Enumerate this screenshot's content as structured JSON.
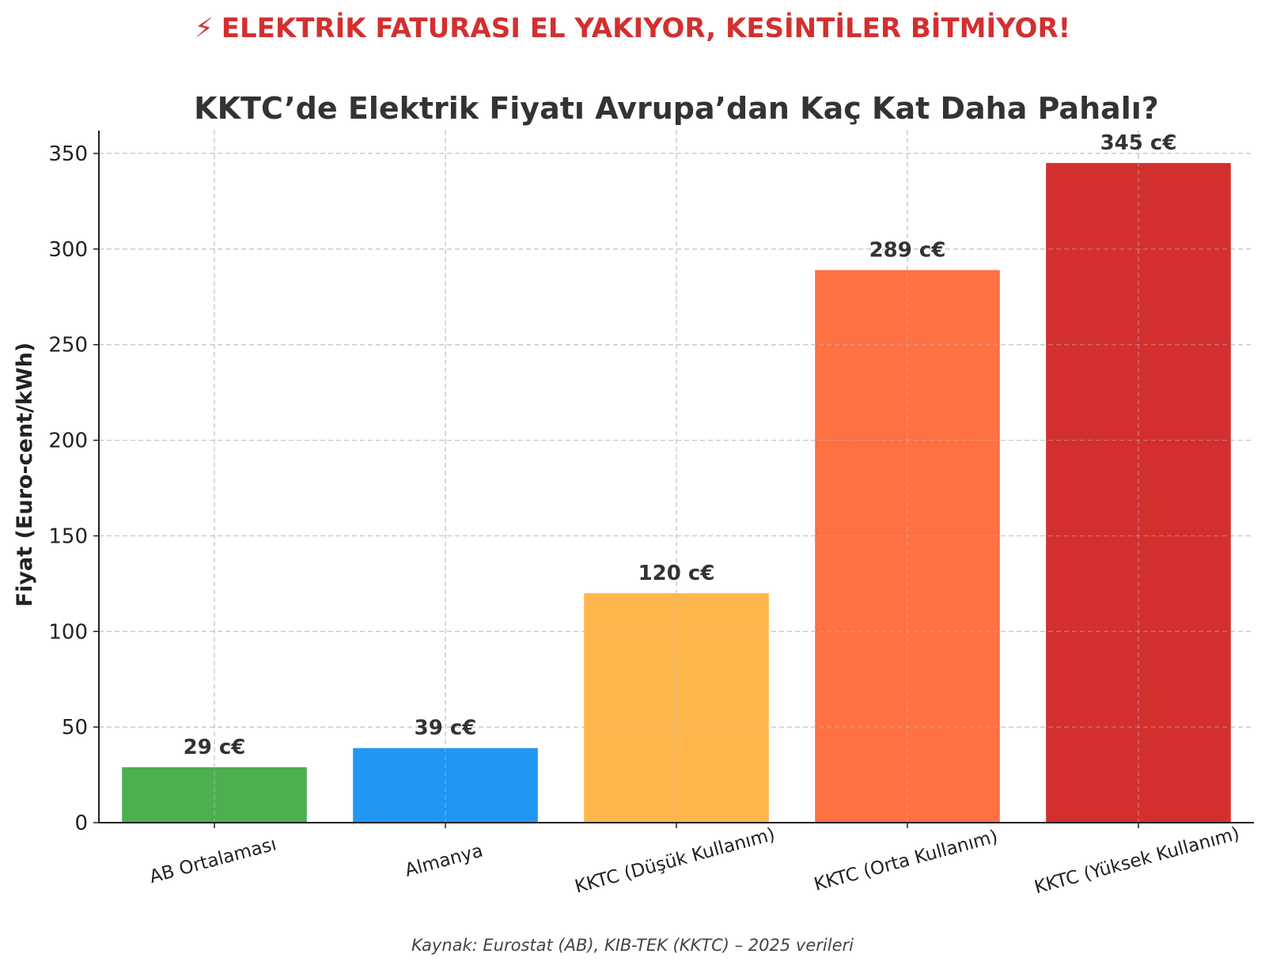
{
  "headline": {
    "icon": "lightning-bolt-icon",
    "icon_glyph": "⚡",
    "text": "ELEKTRİK FATURASI EL YAKIYOR, KESİNTİLER BİTMİYOR!",
    "color": "#d32f2f"
  },
  "chart_data": {
    "type": "bar",
    "title": "KKTC’de Elektrik Fiyatı Avrupa’dan Kaç Kat Daha Pahalı?",
    "xlabel": "",
    "ylabel": "Fiyat (Euro-cent/kWh)",
    "categories": [
      "AB Ortalaması",
      "Almanya",
      "KKTC (Düşük Kullanım)",
      "KKTC (Orta Kullanım)",
      "KKTC (Yüksek Kullanım)"
    ],
    "values": [
      29,
      39,
      120,
      289,
      345
    ],
    "value_labels": [
      "29 c€",
      "39 c€",
      "120 c€",
      "289 c€",
      "345 c€"
    ],
    "colors": [
      "#4caf50",
      "#2196f3",
      "#ffb74d",
      "#ff7043",
      "#d32f2f"
    ],
    "yticks": [
      0,
      50,
      100,
      150,
      200,
      250,
      300,
      350
    ],
    "ylim": [
      0,
      362
    ],
    "grid": true
  },
  "footer": {
    "source": "Kaynak: Eurostat (AB), KIB-TEK (KKTC) – 2025 verileri"
  }
}
